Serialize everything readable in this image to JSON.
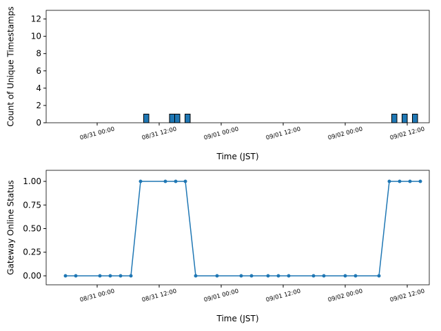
{
  "chart_data": [
    {
      "type": "bar",
      "xlabel": "Time (JST)",
      "ylabel": "Count of Unique Timestamps",
      "color": "#1f77b4",
      "x": [
        "08/31 09:30",
        "08/31 14:30",
        "08/31 15:30",
        "08/31 17:30",
        "09/02 09:30",
        "09/02 11:30",
        "09/02 13:30"
      ],
      "values": [
        1,
        1,
        1,
        1,
        1,
        1,
        1
      ],
      "xlim": [
        "08/30 14:08",
        "09/02 16:16"
      ],
      "xticks": [
        "08/31 00:00",
        "08/31 12:00",
        "09/01 00:00",
        "09/01 12:00",
        "09/02 00:00",
        "09/02 12:00"
      ],
      "ylim": [
        0,
        13
      ],
      "yticks": [
        0,
        2,
        4,
        6,
        8,
        10,
        12
      ]
    },
    {
      "type": "line",
      "xlabel": "Time (JST)",
      "ylabel": "Gateway Online Status",
      "color": "#1f77b4",
      "x": [
        "08/30 17:52",
        "08/30 19:52",
        "08/31 00:32",
        "08/31 02:32",
        "08/31 04:32",
        "08/31 06:32",
        "08/31 08:24",
        "08/31 13:12",
        "08/31 15:12",
        "08/31 17:04",
        "08/31 19:04",
        "08/31 23:12",
        "09/01 03:52",
        "09/01 05:52",
        "09/01 09:04",
        "09/01 11:04",
        "09/01 13:04",
        "09/01 17:52",
        "09/01 19:52",
        "09/02 00:00",
        "09/02 02:00",
        "09/02 06:32",
        "09/02 08:32",
        "09/02 10:32",
        "09/02 12:32",
        "09/02 14:32"
      ],
      "values": [
        0,
        0,
        0,
        0,
        0,
        0,
        1,
        1,
        1,
        1,
        0,
        0,
        0,
        0,
        0,
        0,
        0,
        0,
        0,
        0,
        0,
        0,
        1,
        1,
        1,
        1
      ],
      "xlim": [
        "08/30 14:08",
        "09/02 16:16"
      ],
      "xticks": [
        "08/31 00:00",
        "08/31 12:00",
        "09/01 00:00",
        "09/01 12:00",
        "09/02 00:00",
        "09/02 12:00"
      ],
      "ylim": [
        -0.095,
        1.117
      ],
      "yticks": [
        {
          "value": 0,
          "label": "0.00"
        },
        {
          "value": 0.25,
          "label": "0.25"
        },
        {
          "value": 0.5,
          "label": "0.50"
        },
        {
          "value": 0.75,
          "label": "0.75"
        },
        {
          "value": 1,
          "label": "1.00"
        }
      ]
    }
  ]
}
